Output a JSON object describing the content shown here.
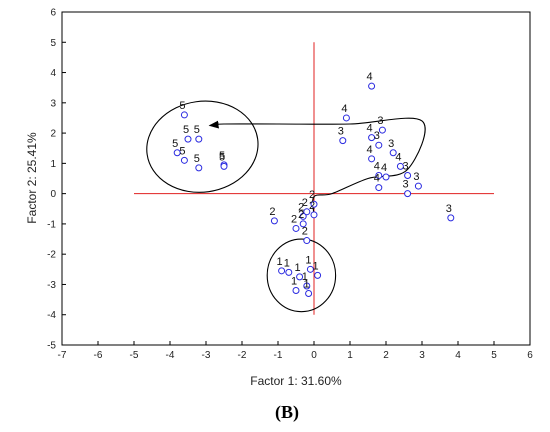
{
  "panel_label": "(B)",
  "chart_data": {
    "type": "scatter",
    "xlabel": "Factor 1: 31.60%",
    "ylabel": "Factor 2: 25.41%",
    "xlim": [
      -7,
      6
    ],
    "ylim": [
      -5,
      6
    ],
    "xticks": [
      "-7",
      "-6",
      "-5",
      "-4",
      "-3",
      "-2",
      "-1",
      "0",
      "1",
      "2",
      "3",
      "4",
      "5",
      "6"
    ],
    "yticks": [
      "-5",
      "-4",
      "-3",
      "-2",
      "-1",
      "0",
      "1",
      "2",
      "3",
      "4",
      "5",
      "6"
    ],
    "grid": false,
    "marker_color": "#2a2ae0",
    "reference_line_color": "#e02020",
    "reference_lines": {
      "horizontal": {
        "y": 0,
        "x_from": -5,
        "x_to": 5
      },
      "vertical": {
        "x": 0,
        "y_from": -4,
        "y_to": 5
      }
    },
    "points": [
      {
        "x": -3.6,
        "y": 2.6,
        "label": "5"
      },
      {
        "x": -3.5,
        "y": 1.8,
        "label": "5"
      },
      {
        "x": -3.2,
        "y": 1.8,
        "label": "5"
      },
      {
        "x": -3.8,
        "y": 1.35,
        "label": "5"
      },
      {
        "x": -3.6,
        "y": 1.1,
        "label": "5"
      },
      {
        "x": -3.2,
        "y": 0.85,
        "label": "5"
      },
      {
        "x": -2.5,
        "y": 0.95,
        "label": "5"
      },
      {
        "x": -2.5,
        "y": 0.9,
        "label": "5"
      },
      {
        "x": 1.6,
        "y": 3.55,
        "label": "4"
      },
      {
        "x": 0.9,
        "y": 2.5,
        "label": "4"
      },
      {
        "x": 0.8,
        "y": 1.75,
        "label": "3"
      },
      {
        "x": 1.9,
        "y": 2.1,
        "label": "3"
      },
      {
        "x": 1.6,
        "y": 1.85,
        "label": "4"
      },
      {
        "x": 1.8,
        "y": 1.6,
        "label": "3"
      },
      {
        "x": 2.2,
        "y": 1.35,
        "label": "3"
      },
      {
        "x": 1.6,
        "y": 1.15,
        "label": "4"
      },
      {
        "x": 2.4,
        "y": 0.9,
        "label": "4"
      },
      {
        "x": 1.8,
        "y": 0.6,
        "label": "4"
      },
      {
        "x": 2.0,
        "y": 0.55,
        "label": "4"
      },
      {
        "x": 2.6,
        "y": 0.6,
        "label": "3"
      },
      {
        "x": 1.8,
        "y": 0.2,
        "label": "4"
      },
      {
        "x": 2.9,
        "y": 0.25,
        "label": "3"
      },
      {
        "x": 2.6,
        "y": 0.0,
        "label": "3"
      },
      {
        "x": 3.8,
        "y": -0.8,
        "label": "3"
      },
      {
        "x": 0.0,
        "y": -0.35,
        "label": "2"
      },
      {
        "x": -0.2,
        "y": -0.6,
        "label": "2"
      },
      {
        "x": -1.1,
        "y": -0.9,
        "label": "2"
      },
      {
        "x": -0.3,
        "y": -0.75,
        "label": "2"
      },
      {
        "x": -0.5,
        "y": -1.15,
        "label": "2"
      },
      {
        "x": -0.3,
        "y": -1.0,
        "label": "2"
      },
      {
        "x": -0.2,
        "y": -1.55,
        "label": "2"
      },
      {
        "x": 0.0,
        "y": -0.7,
        "label": "2"
      },
      {
        "x": -0.9,
        "y": -2.55,
        "label": "1"
      },
      {
        "x": -0.7,
        "y": -2.6,
        "label": "1"
      },
      {
        "x": -0.4,
        "y": -2.75,
        "label": "1"
      },
      {
        "x": -0.1,
        "y": -2.5,
        "label": "1"
      },
      {
        "x": 0.1,
        "y": -2.7,
        "label": "1"
      },
      {
        "x": -0.5,
        "y": -3.2,
        "label": "1"
      },
      {
        "x": -0.2,
        "y": -3.05,
        "label": "1"
      },
      {
        "x": -0.15,
        "y": -3.3,
        "label": "1"
      }
    ],
    "annotations": [
      {
        "type": "ellipse",
        "cx": -3.1,
        "cy": 1.55,
        "rx": 1.55,
        "ry": 1.5,
        "angle": -8
      },
      {
        "type": "ellipse",
        "cx": -0.35,
        "cy": -2.7,
        "rx": 0.95,
        "ry": 1.2,
        "angle": 0
      },
      {
        "type": "curve-arrow",
        "path": [
          [
            0,
            -0.7
          ],
          [
            0,
            -0.1
          ],
          [
            0.5,
            0
          ],
          [
            1.5,
            0.5
          ],
          [
            2.6,
            0.8
          ],
          [
            3.0,
            2.4
          ],
          [
            1.0,
            2.3
          ],
          [
            -1.0,
            2.3
          ],
          [
            -2.5,
            2.3
          ],
          [
            -2.9,
            2.25
          ]
        ]
      }
    ]
  }
}
